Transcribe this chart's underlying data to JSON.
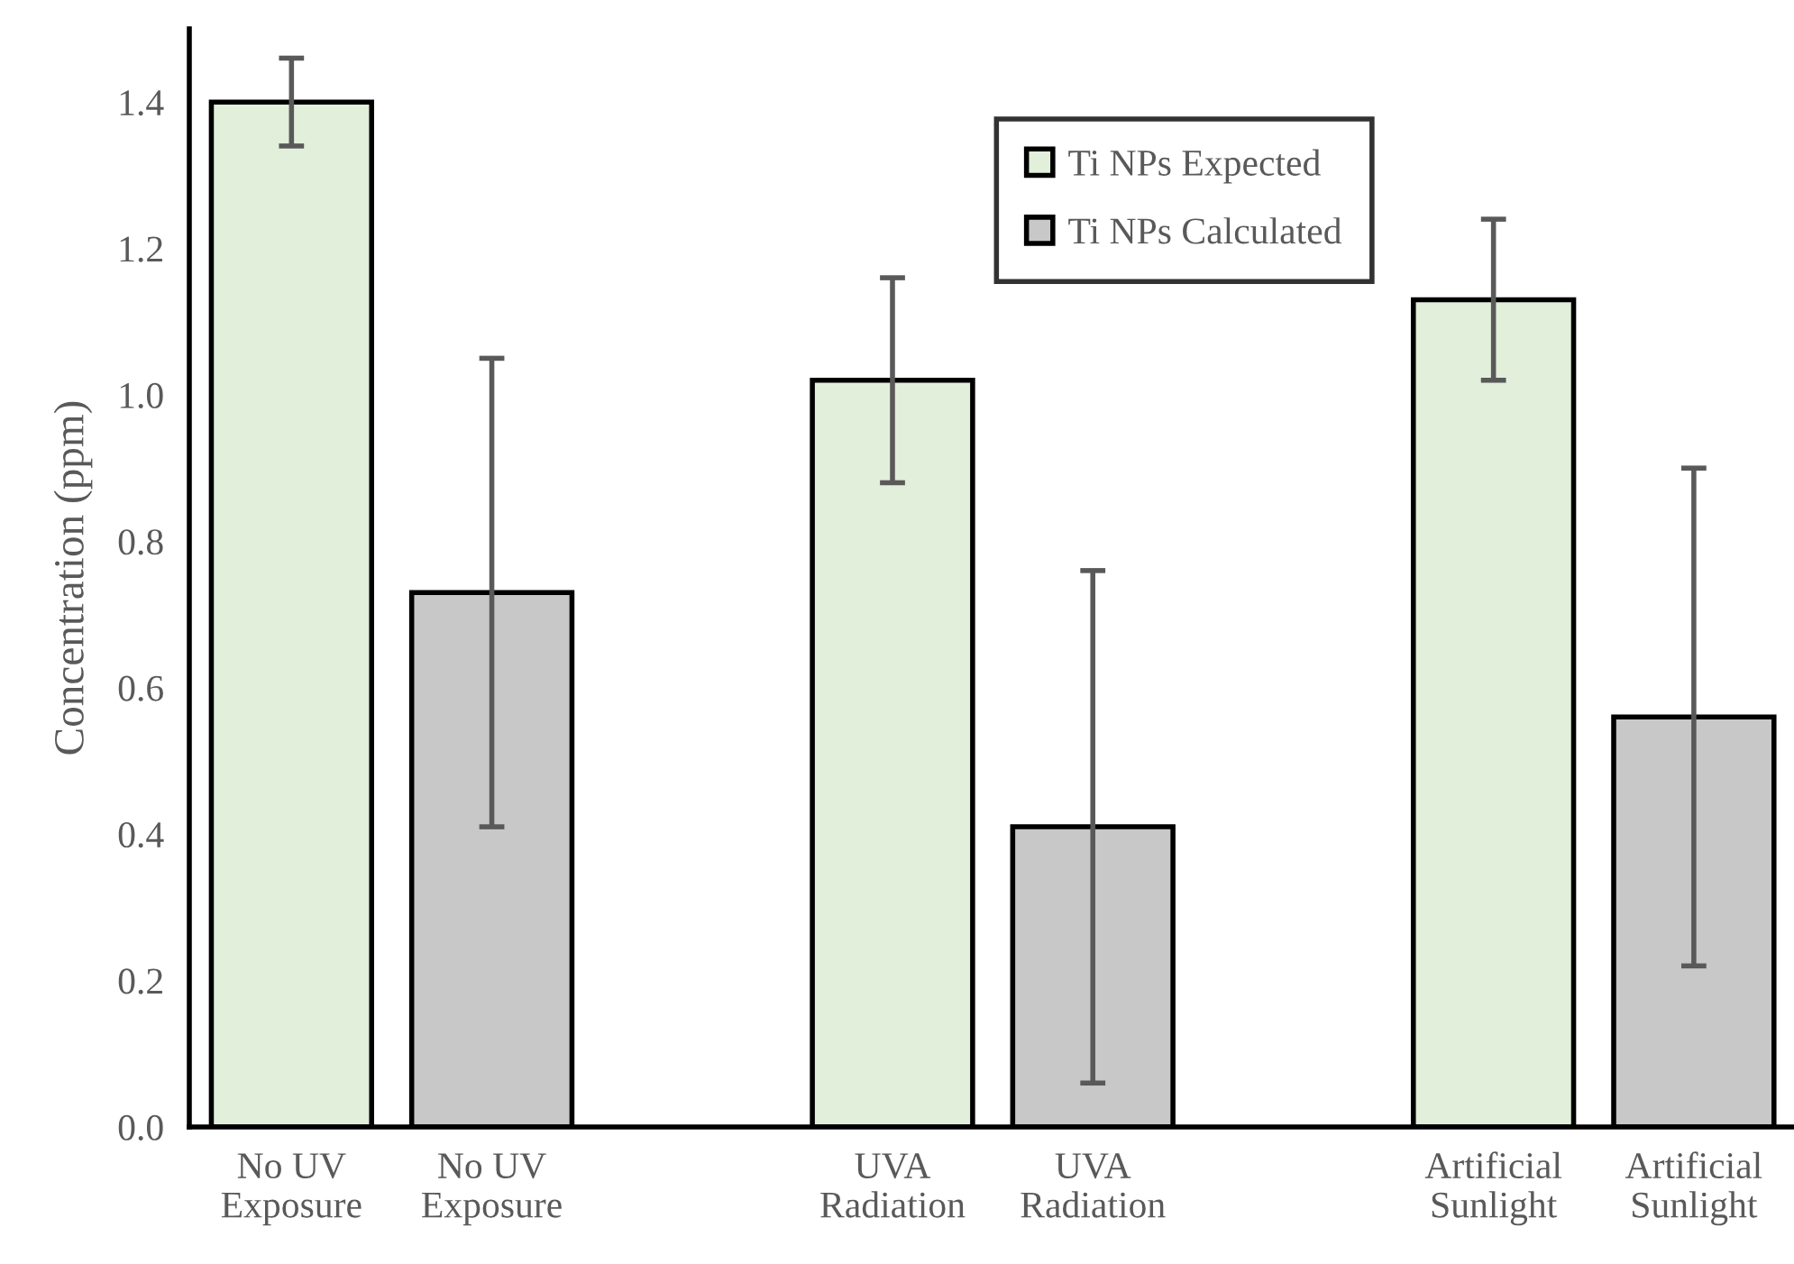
{
  "chart_data": {
    "type": "bar",
    "ylabel": "Concentration (ppm)",
    "categories": [
      "No UV\nExposure",
      "No UV\nExposure",
      null,
      "UVA\nRadiation",
      "UVA\nRadiation",
      null,
      "Artificial\nSunlight",
      "Artificial\nSunlight"
    ],
    "series": [
      {
        "name": "Ti NPs Expected",
        "color": "#e2efda",
        "values": [
          1.4,
          null,
          null,
          1.02,
          null,
          null,
          1.13,
          null
        ],
        "errors": [
          0.06,
          null,
          null,
          0.14,
          null,
          null,
          0.11,
          null
        ]
      },
      {
        "name": "Ti NPs Calculated",
        "color": "#c8c8c8",
        "values": [
          null,
          0.73,
          null,
          null,
          0.41,
          null,
          null,
          0.56
        ],
        "errors": [
          null,
          0.32,
          null,
          null,
          0.35,
          null,
          null,
          0.34
        ]
      }
    ],
    "ylim": [
      0,
      1.5
    ],
    "yticks": [
      {
        "value": 0,
        "label": "0.0"
      },
      0.2,
      0.4,
      0.6,
      0.8,
      {
        "value": 1,
        "label": "1.0"
      },
      1.2,
      1.4
    ],
    "grid": false,
    "legend": "top"
  }
}
